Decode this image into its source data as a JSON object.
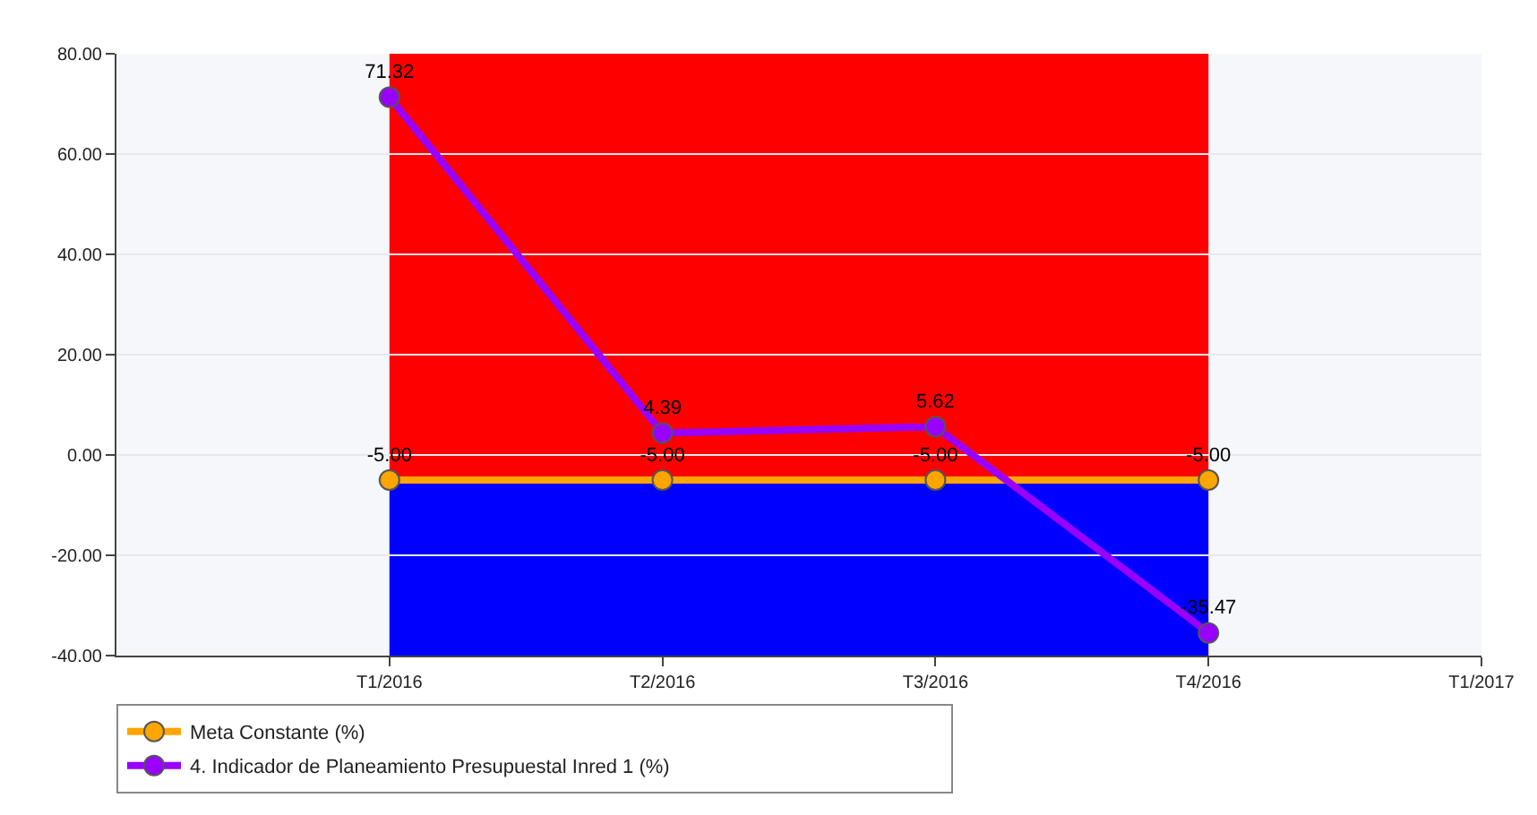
{
  "chart_data": {
    "type": "line",
    "categories": [
      null,
      "T1/2016",
      "T2/2016",
      "T3/2016",
      "T4/2016",
      "T1/2017"
    ],
    "series": [
      {
        "name": "Meta Constante (%)",
        "color": "#ffa500",
        "values": [
          null,
          -5,
          -5,
          -5,
          -5,
          null
        ],
        "value_labels": [
          null,
          "-5.00",
          "-5.00",
          "-5.00",
          "-5.00",
          null
        ]
      },
      {
        "name": "4. Indicador de Planeamiento Presupuestal Inred 1 (%)",
        "color": "#9900ff",
        "values": [
          null,
          71.32,
          4.39,
          5.62,
          -35.47,
          null
        ],
        "value_labels": [
          null,
          "71.32",
          "4.39",
          "5.62",
          "-35.47",
          null
        ]
      }
    ],
    "bands": [
      {
        "axis": "y",
        "from": -5,
        "to": 80,
        "color": "#ff0000"
      },
      {
        "axis": "y",
        "from": -40,
        "to": -5,
        "color": "#0000ff"
      }
    ],
    "ylim": [
      -40,
      80
    ],
    "yticks": [
      {
        "value": -40,
        "label": "-40.00"
      },
      {
        "value": -20,
        "label": "-20.00"
      },
      {
        "value": 0,
        "label": "0.00"
      },
      {
        "value": 20,
        "label": "20.00"
      },
      {
        "value": 40,
        "label": "40.00"
      },
      {
        "value": 60,
        "label": "60.00"
      },
      {
        "value": 80,
        "label": "80.00"
      }
    ],
    "grid": "y",
    "legend": "bottom",
    "marker": "circle",
    "line_style": "solid"
  }
}
